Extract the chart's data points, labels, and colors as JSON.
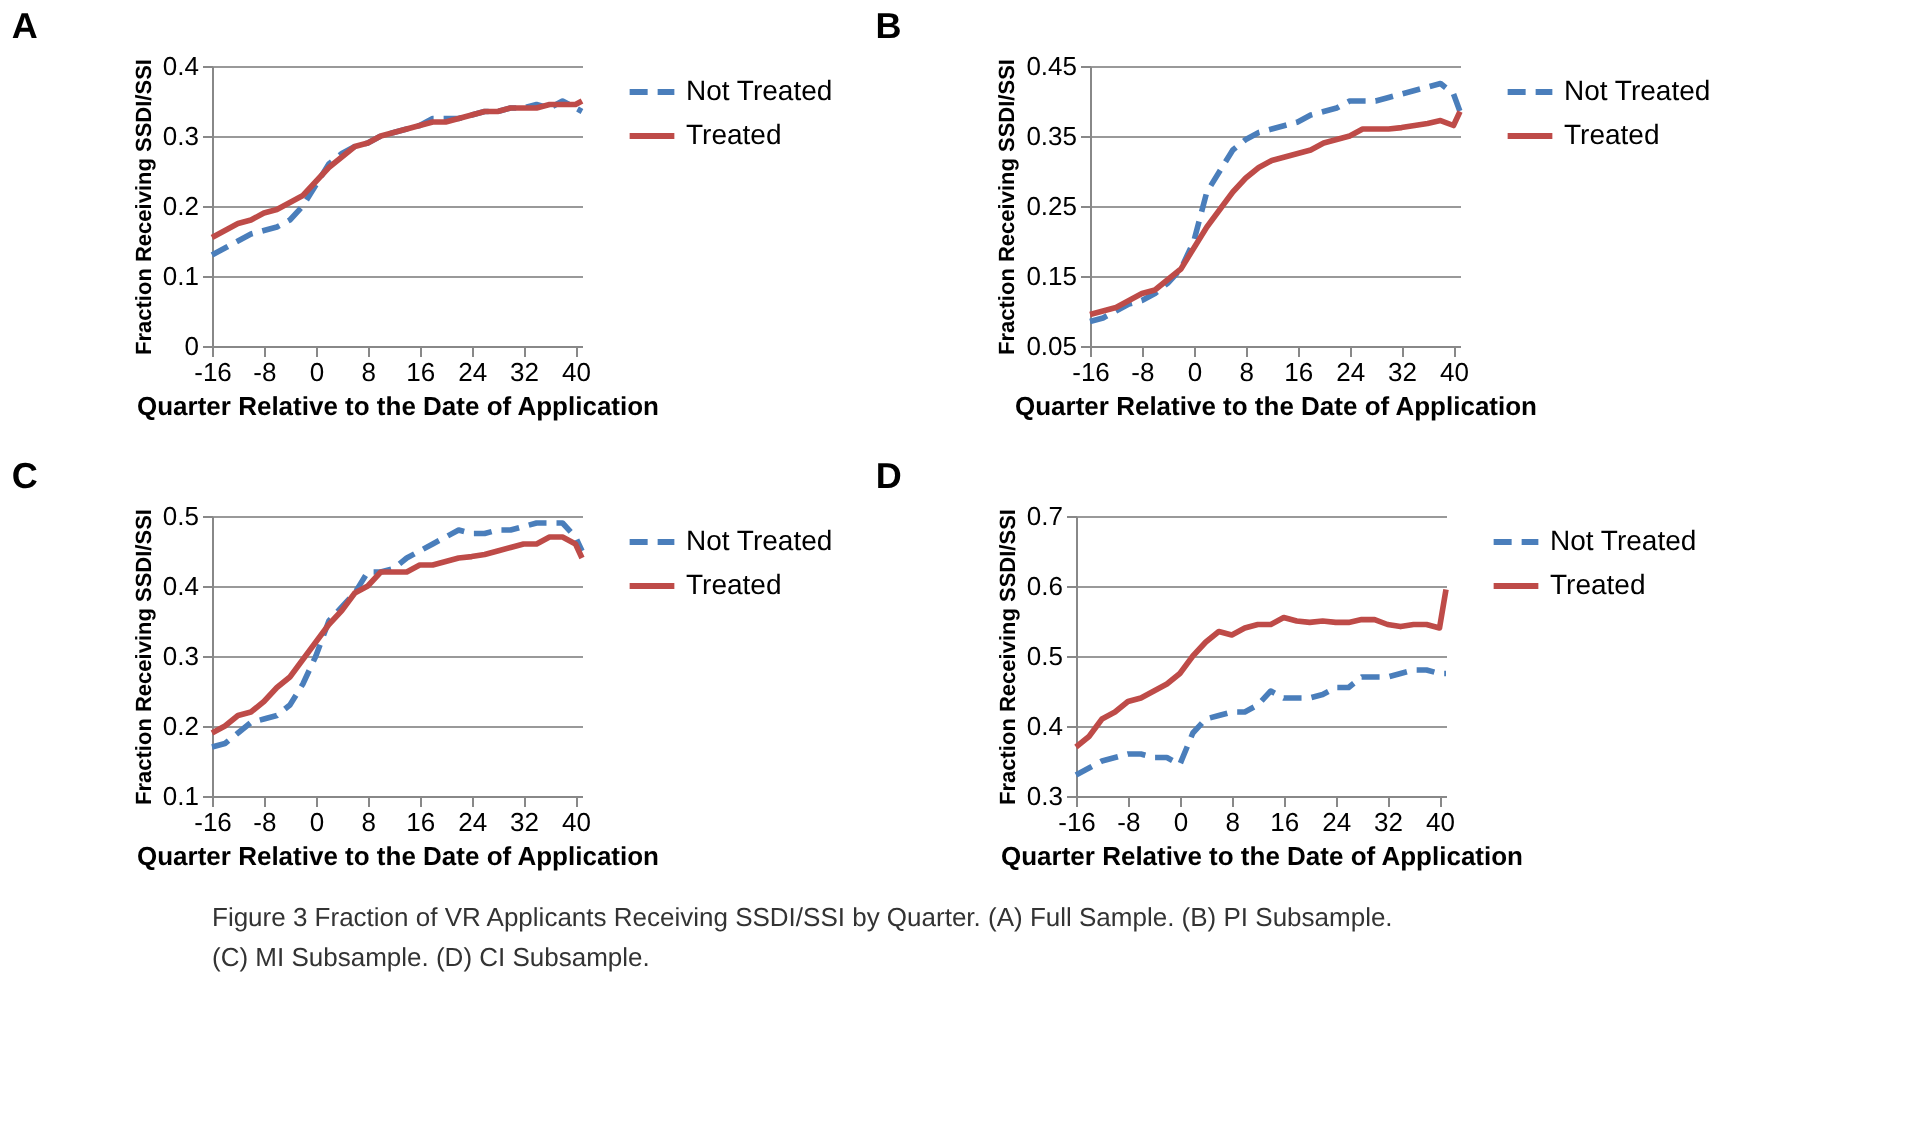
{
  "chart_data": [
    {
      "type": "line",
      "title": "A",
      "xlabel": "Quarter Relative to the Date of Application",
      "ylabel": "Fraction Receiving SSDI/SSI",
      "x": [
        -16,
        -14,
        -12,
        -10,
        -8,
        -6,
        -4,
        -2,
        0,
        2,
        4,
        6,
        8,
        10,
        12,
        14,
        16,
        18,
        20,
        22,
        24,
        26,
        28,
        30,
        32,
        34,
        36,
        38,
        40,
        41
      ],
      "series": [
        {
          "name": "Not Treated",
          "color": "#4a7ebb",
          "line_style": "dashed",
          "values": [
            0.13,
            0.14,
            0.15,
            0.16,
            0.165,
            0.17,
            0.18,
            0.2,
            0.23,
            0.26,
            0.275,
            0.285,
            0.29,
            0.3,
            0.305,
            0.31,
            0.315,
            0.325,
            0.325,
            0.325,
            0.33,
            0.335,
            0.335,
            0.34,
            0.34,
            0.345,
            0.34,
            0.35,
            0.34,
            0.335
          ]
        },
        {
          "name": "Treated",
          "color": "#be4b48",
          "line_style": "solid",
          "values": [
            0.155,
            0.165,
            0.175,
            0.18,
            0.19,
            0.195,
            0.205,
            0.215,
            0.235,
            0.255,
            0.27,
            0.285,
            0.29,
            0.3,
            0.305,
            0.31,
            0.315,
            0.32,
            0.32,
            0.325,
            0.33,
            0.335,
            0.335,
            0.34,
            0.34,
            0.34,
            0.345,
            0.345,
            0.345,
            0.35
          ]
        }
      ],
      "xlim": [
        -16,
        41
      ],
      "xticks": [
        -16,
        -8,
        0,
        8,
        16,
        24,
        32,
        40
      ],
      "ylim": [
        0,
        0.4
      ],
      "yticks": [
        0,
        0.1,
        0.2,
        0.3,
        0.4
      ],
      "grid": "y",
      "legend": "right"
    },
    {
      "type": "line",
      "title": "B",
      "xlabel": "Quarter Relative to the Date of Application",
      "ylabel": "Fraction  Receiving SSDI/SSI",
      "x": [
        -16,
        -14,
        -12,
        -10,
        -8,
        -6,
        -4,
        -2,
        0,
        2,
        4,
        6,
        8,
        10,
        12,
        14,
        16,
        18,
        20,
        22,
        24,
        26,
        28,
        30,
        32,
        34,
        36,
        38,
        40,
        41
      ],
      "series": [
        {
          "name": "Not Treated",
          "color": "#4a7ebb",
          "line_style": "dashed",
          "values": [
            0.085,
            0.09,
            0.1,
            0.11,
            0.115,
            0.125,
            0.14,
            0.16,
            0.2,
            0.27,
            0.3,
            0.33,
            0.345,
            0.355,
            0.36,
            0.365,
            0.37,
            0.38,
            0.385,
            0.39,
            0.4,
            0.4,
            0.4,
            0.405,
            0.41,
            0.415,
            0.42,
            0.425,
            0.41,
            0.385
          ]
        },
        {
          "name": "Treated",
          "color": "#be4b48",
          "line_style": "solid",
          "values": [
            0.095,
            0.1,
            0.105,
            0.115,
            0.125,
            0.13,
            0.145,
            0.16,
            0.19,
            0.22,
            0.245,
            0.27,
            0.29,
            0.305,
            0.315,
            0.32,
            0.325,
            0.33,
            0.34,
            0.345,
            0.35,
            0.36,
            0.36,
            0.36,
            0.362,
            0.365,
            0.368,
            0.372,
            0.365,
            0.385
          ]
        }
      ],
      "xlim": [
        -16,
        41
      ],
      "xticks": [
        -16,
        -8,
        0,
        8,
        16,
        24,
        32,
        40
      ],
      "ylim": [
        0.05,
        0.45
      ],
      "yticks": [
        0.05,
        0.15,
        0.25,
        0.35,
        0.45
      ],
      "grid": "y",
      "legend": "right"
    },
    {
      "type": "line",
      "title": "C",
      "xlabel": "Quarter Relative to the Date of Application",
      "ylabel": "Fraction Receiving SSDI/SSI",
      "x": [
        -16,
        -14,
        -12,
        -10,
        -8,
        -6,
        -4,
        -2,
        0,
        2,
        4,
        6,
        8,
        10,
        12,
        14,
        16,
        18,
        20,
        22,
        24,
        26,
        28,
        30,
        32,
        34,
        36,
        38,
        40,
        41
      ],
      "series": [
        {
          "name": "Not Treated",
          "color": "#4a7ebb",
          "line_style": "dashed",
          "values": [
            0.17,
            0.175,
            0.19,
            0.205,
            0.21,
            0.215,
            0.23,
            0.26,
            0.3,
            0.35,
            0.37,
            0.39,
            0.42,
            0.42,
            0.425,
            0.44,
            0.45,
            0.46,
            0.47,
            0.48,
            0.475,
            0.475,
            0.48,
            0.48,
            0.485,
            0.49,
            0.49,
            0.49,
            0.47,
            0.45
          ]
        },
        {
          "name": "Treated",
          "color": "#be4b48",
          "line_style": "solid",
          "values": [
            0.19,
            0.2,
            0.215,
            0.22,
            0.235,
            0.255,
            0.27,
            0.295,
            0.32,
            0.345,
            0.365,
            0.39,
            0.4,
            0.42,
            0.42,
            0.42,
            0.43,
            0.43,
            0.435,
            0.44,
            0.442,
            0.445,
            0.45,
            0.455,
            0.46,
            0.46,
            0.47,
            0.47,
            0.46,
            0.44
          ]
        }
      ],
      "xlim": [
        -16,
        41
      ],
      "xticks": [
        -16,
        -8,
        0,
        8,
        16,
        24,
        32,
        40
      ],
      "ylim": [
        0.1,
        0.5
      ],
      "yticks": [
        0.1,
        0.2,
        0.3,
        0.4,
        0.5
      ],
      "grid": "y",
      "legend": "right"
    },
    {
      "type": "line",
      "title": "D",
      "xlabel": "Quarter Relative to the Date of Application",
      "ylabel": "Fraction  Receiving SSDI/SSI",
      "x": [
        -16,
        -14,
        -12,
        -10,
        -8,
        -6,
        -4,
        -2,
        0,
        2,
        4,
        6,
        8,
        10,
        12,
        14,
        16,
        18,
        20,
        22,
        24,
        26,
        28,
        30,
        32,
        34,
        36,
        38,
        40,
        41
      ],
      "series": [
        {
          "name": "Not Treated",
          "color": "#4a7ebb",
          "line_style": "dashed",
          "values": [
            0.33,
            0.34,
            0.35,
            0.355,
            0.36,
            0.36,
            0.355,
            0.355,
            0.345,
            0.39,
            0.41,
            0.415,
            0.42,
            0.42,
            0.43,
            0.45,
            0.44,
            0.44,
            0.44,
            0.445,
            0.455,
            0.455,
            0.47,
            0.47,
            0.47,
            0.475,
            0.48,
            0.48,
            0.475,
            0.475
          ]
        },
        {
          "name": "Treated",
          "color": "#be4b48",
          "line_style": "solid",
          "values": [
            0.37,
            0.385,
            0.41,
            0.42,
            0.435,
            0.44,
            0.45,
            0.46,
            0.475,
            0.5,
            0.52,
            0.535,
            0.53,
            0.54,
            0.545,
            0.545,
            0.555,
            0.55,
            0.548,
            0.55,
            0.548,
            0.548,
            0.552,
            0.552,
            0.545,
            0.542,
            0.545,
            0.545,
            0.54,
            0.595
          ]
        }
      ],
      "xlim": [
        -16,
        41
      ],
      "xticks": [
        -16,
        -8,
        0,
        8,
        16,
        24,
        32,
        40
      ],
      "ylim": [
        0.3,
        0.7
      ],
      "yticks": [
        0.3,
        0.4,
        0.5,
        0.6,
        0.7
      ],
      "grid": "y",
      "legend": "right",
      "annotations": [
        "Figure 3 Fraction of VR Applicants Receiving SSDI/SSI by Quarter. (A) Full Sample. (B) PI Subsample.",
        "(C) MI Subsample. (D) CI Subsample."
      ]
    }
  ]
}
